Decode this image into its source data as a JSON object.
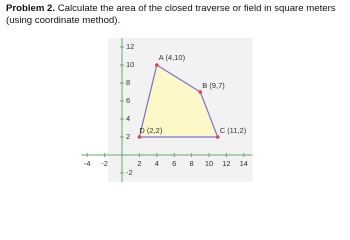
{
  "problem": {
    "label": "Problem 2.",
    "text": "Calculate the area of the closed traverse or field in square meters (using coordinate method)."
  },
  "chart_data": {
    "type": "polygon",
    "x": [
      4,
      9,
      11,
      2
    ],
    "y": [
      10,
      7,
      2,
      2
    ],
    "point_labels": [
      "A (4,10)",
      "B (9,7)",
      "C (11,2)",
      "D (2,2)"
    ],
    "fill": "#fdf8c8",
    "edge_color": "#7a6fd6",
    "point_color": "#e0404a",
    "xlim": [
      -4,
      15
    ],
    "ylim": [
      -3,
      13
    ],
    "xticks": [
      -4,
      -2,
      2,
      4,
      6,
      8,
      10,
      12,
      14
    ],
    "yticks": [
      -2,
      2,
      4,
      6,
      8,
      10,
      12
    ]
  }
}
